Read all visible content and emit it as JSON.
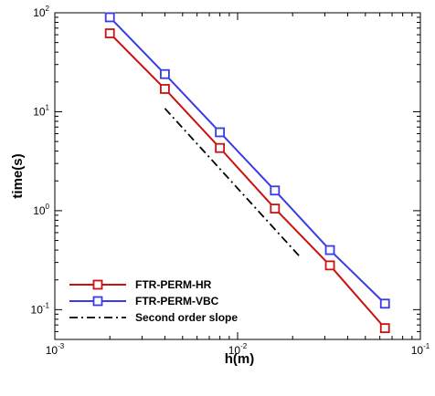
{
  "chart_data": {
    "type": "line",
    "xlabel": "h(m)",
    "ylabel": "time(s)",
    "xscale": "log",
    "yscale": "log",
    "xlim": [
      0.001,
      0.1
    ],
    "ylim": [
      0.05,
      100
    ],
    "grid": false,
    "legend_position": "bottom-left",
    "x_ticks": [
      {
        "base": "10",
        "exp": "-3",
        "value": 0.001
      },
      {
        "base": "10",
        "exp": "-2",
        "value": 0.01
      },
      {
        "base": "10",
        "exp": "-1",
        "value": 0.1
      }
    ],
    "y_ticks": [
      {
        "base": "10",
        "exp": "-1",
        "value": 0.1
      },
      {
        "base": "10",
        "exp": "0",
        "value": 1
      },
      {
        "base": "10",
        "exp": "1",
        "value": 10
      },
      {
        "base": "10",
        "exp": "2",
        "value": 100
      }
    ],
    "series": [
      {
        "name": "FTR-PERM-HR",
        "color": "#cc1111",
        "marker": "square",
        "x": [
          0.002,
          0.004,
          0.008,
          0.016,
          0.032,
          0.064
        ],
        "y": [
          62,
          17,
          4.3,
          1.05,
          0.28,
          0.065
        ]
      },
      {
        "name": "FTR-PERM-VBC",
        "color": "#3a3ae6",
        "marker": "square",
        "x": [
          0.002,
          0.004,
          0.008,
          0.016,
          0.032,
          0.064
        ],
        "y": [
          90,
          24,
          6.2,
          1.6,
          0.4,
          0.115
        ]
      },
      {
        "name": "Second order slope",
        "color": "#000000",
        "style": "dash-dot",
        "x": [
          0.004,
          0.022
        ],
        "y": [
          10.8,
          0.34
        ]
      }
    ]
  }
}
